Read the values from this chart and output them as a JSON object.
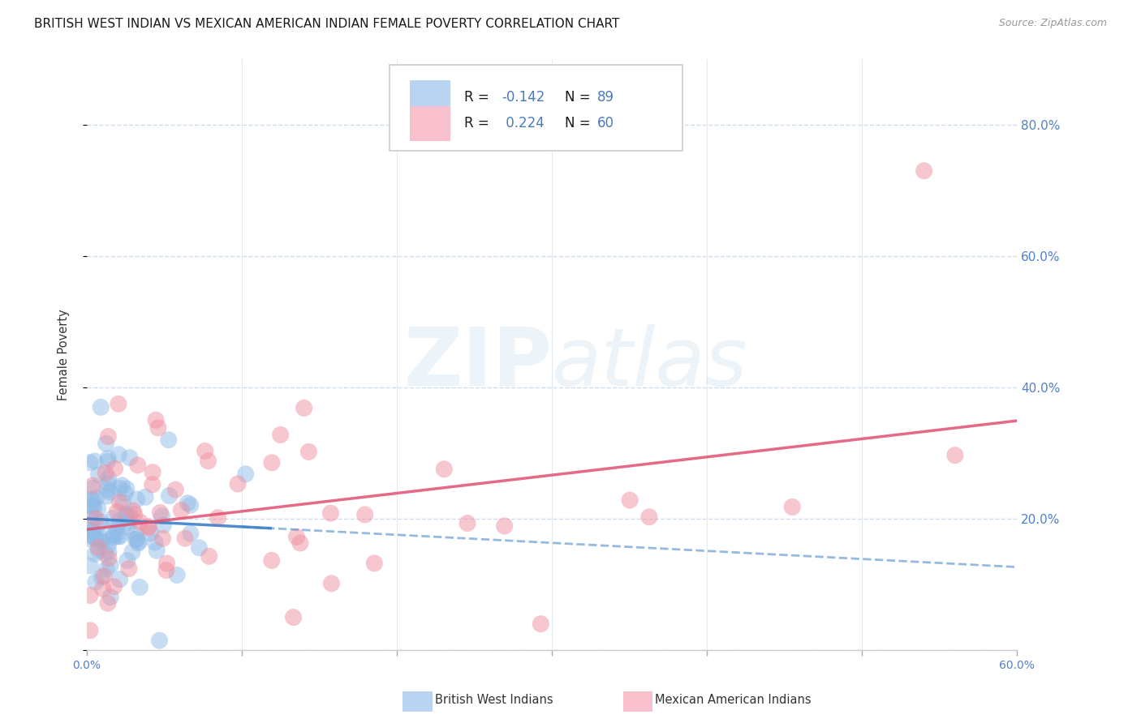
{
  "title": "BRITISH WEST INDIAN VS MEXICAN AMERICAN INDIAN FEMALE POVERTY CORRELATION CHART",
  "source": "Source: ZipAtlas.com",
  "ylabel": "Female Poverty",
  "watermark_zip": "ZIP",
  "watermark_atlas": "atlas",
  "xlim": [
    0.0,
    0.6
  ],
  "ylim": [
    0.0,
    0.9
  ],
  "r_bwi": -0.142,
  "n_bwi": 89,
  "r_mai": 0.224,
  "n_mai": 60,
  "group1_color": "#90bce8",
  "group2_color": "#f090a0",
  "line1_color": "#4080c8",
  "line2_color": "#e05070",
  "background_color": "#ffffff",
  "grid_color": "#c8d8ea",
  "title_fontsize": 11,
  "tick_fontsize": 10,
  "tick_color": "#5080c8",
  "legend_rect_color1": "#b8d4f0",
  "legend_rect_color2": "#f8c0cc",
  "legend_text_color": "#1a1a1a",
  "legend_val_color": "#4a7abf"
}
